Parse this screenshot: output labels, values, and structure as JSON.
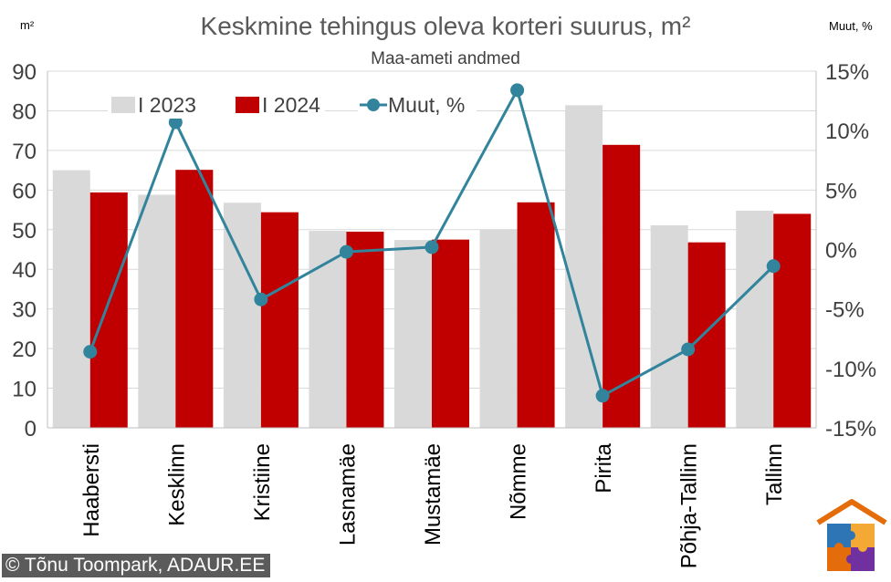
{
  "chart_data": {
    "type": "bar",
    "title": "Keskmine tehingus oleva korteri suurus, m²",
    "subtitle": "Maa-ameti andmed",
    "left_unit_label": "m²",
    "right_unit_label": "Muut, %",
    "categories": [
      "Haabersti",
      "Kesklinn",
      "Kristiine",
      "Lasnamäe",
      "Mustamäe",
      "Nõmme",
      "Pirita",
      "Põhja-Tallinn",
      "Tallinn"
    ],
    "series": [
      {
        "name": "I 2023",
        "kind": "bar",
        "axis": "left",
        "color": "#d9d9d9",
        "values": [
          65.0,
          58.8,
          56.8,
          49.7,
          47.4,
          50.1,
          81.4,
          51.1,
          54.8
        ]
      },
      {
        "name": "I 2024",
        "kind": "bar",
        "axis": "left",
        "color": "#c00000",
        "values": [
          59.4,
          65.1,
          54.4,
          49.5,
          47.5,
          56.9,
          71.4,
          46.8,
          54.0
        ]
      },
      {
        "name": "Muut, %",
        "kind": "line",
        "axis": "right",
        "color": "#31849b",
        "values": [
          -8.6,
          10.7,
          -4.2,
          -0.2,
          0.2,
          13.4,
          -12.3,
          -8.4,
          -1.4
        ]
      }
    ],
    "y_left": {
      "min": 0,
      "max": 90,
      "step": 10,
      "ticks": [
        "0",
        "10",
        "20",
        "30",
        "40",
        "50",
        "60",
        "70",
        "80",
        "90"
      ]
    },
    "y_right": {
      "min": -15,
      "max": 15,
      "step": 5,
      "ticks": [
        "-15%",
        "-10%",
        "-5%",
        "0%",
        "5%",
        "10%",
        "15%"
      ]
    },
    "grid": true,
    "legend_position": "top-left"
  },
  "credit": "© Tõnu Toompark, ADAUR.EE",
  "logo": "puzzle-house-logo"
}
